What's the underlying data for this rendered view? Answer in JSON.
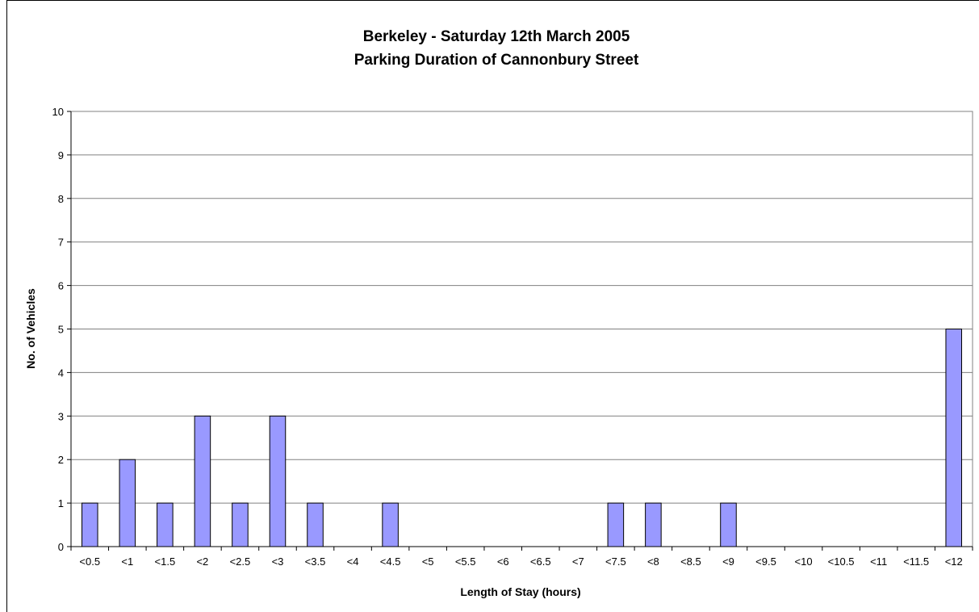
{
  "chart_data": {
    "type": "bar",
    "title": "Berkeley - Saturday 12th March 2005",
    "subtitle": "Parking Duration of Cannonbury Street",
    "xlabel": "Length of Stay (hours)",
    "ylabel": "No. of Vehicles",
    "ylim": [
      0,
      10
    ],
    "yticks": [
      "0",
      "1",
      "2",
      "3",
      "4",
      "5",
      "6",
      "7",
      "8",
      "9",
      "10"
    ],
    "grid": true,
    "categories": [
      "<0.5",
      "<1",
      "<1.5",
      "<2",
      "<2.5",
      "<3",
      "<3.5",
      "<4",
      "<4.5",
      "<5",
      "<5.5",
      "<6",
      "<6.5",
      "<7",
      "<7.5",
      "<8",
      "<8.5",
      "<9",
      "<9.5",
      "<10",
      "<10.5",
      "<11",
      "<11.5",
      "<12"
    ],
    "values": [
      1,
      2,
      1,
      3,
      1,
      3,
      1,
      0,
      1,
      0,
      0,
      0,
      0,
      0,
      1,
      1,
      0,
      1,
      0,
      0,
      0,
      0,
      0,
      5
    ],
    "bar_color": "#9999ff",
    "bar_edge_color": "#000000"
  }
}
